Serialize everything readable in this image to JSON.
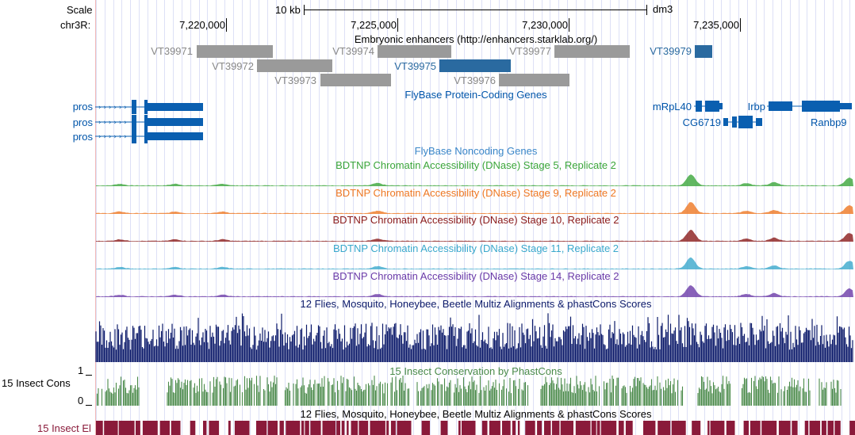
{
  "ruler": {
    "scale_label": "Scale",
    "chrom_label": "chr3R:",
    "scale_bar_text": "10 kb",
    "assembly": "dm3",
    "positions": [
      "7,220,000",
      "7,225,000",
      "7,230,000",
      "7,235,000"
    ]
  },
  "tracks": {
    "enhancers": {
      "title": "Embryonic enhancers (http://enhancers.starklab.org/)",
      "items": [
        "VT39971",
        "VT39972",
        "VT39973",
        "VT39974",
        "VT39975",
        "VT39976",
        "VT39977",
        "VT39979"
      ],
      "colors": {
        "default": "#9a9a9a",
        "highlight": "#2a6aa0"
      }
    },
    "coding_genes": {
      "title": "FlyBase Protein-Coding Genes",
      "left_labels": [
        "pros",
        "pros",
        "pros"
      ],
      "right_labels": [
        "mRpL40",
        "CG6719",
        "Irbp",
        "Ranbp9"
      ],
      "color": "#0a5fb0"
    },
    "noncoding_genes": {
      "title": "FlyBase Noncoding Genes",
      "color": "#3a86c8"
    },
    "dnase": [
      {
        "title": "BDTNP Chromatin Accessibility (DNase) Stage 5, Replicate 2",
        "color": "#3aa53a"
      },
      {
        "title": "BDTNP Chromatin Accessibility (DNase) Stage 9, Replicate 2",
        "color": "#ee7722"
      },
      {
        "title": "BDTNP Chromatin Accessibility (DNase) Stage 10, Replicate 2",
        "color": "#8a1a1a"
      },
      {
        "title": "BDTNP Chromatin Accessibility (DNase) Stage 11, Replicate 2",
        "color": "#3aa8cc"
      },
      {
        "title": "BDTNP Chromatin Accessibility (DNase) Stage 14, Replicate 2",
        "color": "#6a3aa8"
      }
    ],
    "multiz": {
      "title": "12 Flies, Mosquito, Honeybee, Beetle Multiz Alignments & phastCons Scores",
      "color": "#0c1a6a"
    },
    "phastcons": {
      "title": "15 Insect Conservation by PhastCons",
      "side_label": "15 Insect Cons",
      "y_top": "1",
      "y_bottom": "0",
      "color": "#4a8a4a"
    },
    "elements": {
      "title": "12 Flies, Mosquito, Honeybee, Beetle Multiz Alignments & phastCons Scores",
      "side_label": "15 Insect El",
      "color": "#8a1a3a"
    }
  }
}
